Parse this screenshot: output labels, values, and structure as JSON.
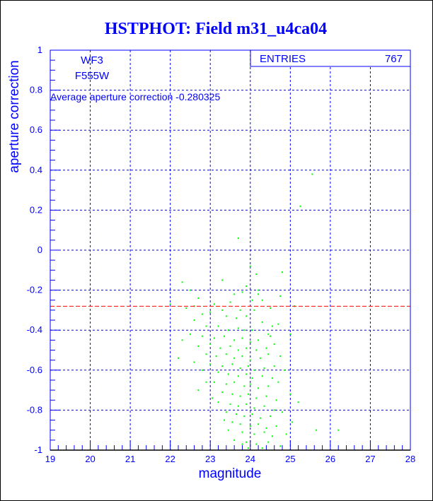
{
  "chart_data": {
    "type": "scatter",
    "title": "HSTPHOT: Field m31_u4ca04",
    "xlabel": "magnitude",
    "ylabel": "aperture correction",
    "xlim": [
      19,
      28
    ],
    "ylim": [
      -1,
      1
    ],
    "xticks": [
      "19",
      "20",
      "21",
      "22",
      "23",
      "24",
      "25",
      "26",
      "27",
      "28"
    ],
    "yticks": [
      "-1",
      "-0.8",
      "-0.6",
      "-0.4",
      "-0.2",
      "0",
      "0.2",
      "0.4",
      "0.6",
      "0.8",
      "1"
    ],
    "grid": true,
    "labels": [
      "WF3",
      "F555W"
    ],
    "annotation": "Average aperture correction -0.280325",
    "average_line": -0.280325,
    "stats": {
      "label": "ENTRIES",
      "value": "767"
    },
    "colors": {
      "axes": "#0000ff",
      "points": "#00ff00",
      "average": "#ff0000",
      "title": "#0000ff"
    },
    "points": [
      [
        25.55,
        0.38
      ],
      [
        25.25,
        0.22
      ],
      [
        23.7,
        0.06
      ],
      [
        24.0,
        -0.08
      ],
      [
        24.15,
        -0.12
      ],
      [
        24.2,
        -0.2
      ],
      [
        24.8,
        -0.11
      ],
      [
        23.3,
        -0.15
      ],
      [
        23.9,
        -0.18
      ],
      [
        24.2,
        -0.22
      ],
      [
        22.5,
        -0.2
      ],
      [
        22.3,
        -0.16
      ],
      [
        22.7,
        -0.24
      ],
      [
        23.6,
        -0.22
      ],
      [
        23.8,
        -0.21
      ],
      [
        24.05,
        -0.25
      ],
      [
        22.0,
        -0.27
      ],
      [
        22.4,
        -0.29
      ],
      [
        22.6,
        -0.28
      ],
      [
        23.1,
        -0.27
      ],
      [
        23.5,
        -0.26
      ],
      [
        23.3,
        -0.3
      ],
      [
        23.75,
        -0.3
      ],
      [
        24.1,
        -0.3
      ],
      [
        24.5,
        -0.29
      ],
      [
        25.1,
        -0.28
      ],
      [
        22.8,
        -0.32
      ],
      [
        23.0,
        -0.31
      ],
      [
        23.4,
        -0.33
      ],
      [
        23.65,
        -0.34
      ],
      [
        23.9,
        -0.33
      ],
      [
        24.3,
        -0.36
      ],
      [
        24.7,
        -0.37
      ],
      [
        22.6,
        -0.35
      ],
      [
        22.9,
        -0.38
      ],
      [
        23.2,
        -0.38
      ],
      [
        23.45,
        -0.4
      ],
      [
        23.7,
        -0.39
      ],
      [
        23.85,
        -0.4
      ],
      [
        24.05,
        -0.4
      ],
      [
        24.55,
        -0.38
      ],
      [
        22.5,
        -0.42
      ],
      [
        22.8,
        -0.43
      ],
      [
        23.1,
        -0.44
      ],
      [
        23.35,
        -0.43
      ],
      [
        23.6,
        -0.45
      ],
      [
        23.8,
        -0.44
      ],
      [
        24.0,
        -0.46
      ],
      [
        24.2,
        -0.45
      ],
      [
        24.5,
        -0.43
      ],
      [
        25.0,
        -0.42
      ],
      [
        22.3,
        -0.45
      ],
      [
        22.7,
        -0.48
      ],
      [
        23.0,
        -0.47
      ],
      [
        23.25,
        -0.49
      ],
      [
        23.5,
        -0.48
      ],
      [
        23.7,
        -0.5
      ],
      [
        23.9,
        -0.49
      ],
      [
        24.15,
        -0.5
      ],
      [
        24.4,
        -0.49
      ],
      [
        24.6,
        -0.47
      ],
      [
        22.9,
        -0.52
      ],
      [
        23.15,
        -0.53
      ],
      [
        23.4,
        -0.52
      ],
      [
        23.6,
        -0.54
      ],
      [
        23.8,
        -0.53
      ],
      [
        24.0,
        -0.55
      ],
      [
        24.25,
        -0.54
      ],
      [
        24.45,
        -0.52
      ],
      [
        24.75,
        -0.53
      ],
      [
        22.2,
        -0.54
      ],
      [
        22.6,
        -0.56
      ],
      [
        23.0,
        -0.57
      ],
      [
        23.3,
        -0.58
      ],
      [
        23.55,
        -0.57
      ],
      [
        23.75,
        -0.59
      ],
      [
        23.95,
        -0.58
      ],
      [
        24.1,
        -0.6
      ],
      [
        24.35,
        -0.59
      ],
      [
        24.6,
        -0.58
      ],
      [
        22.8,
        -0.6
      ],
      [
        23.2,
        -0.61
      ],
      [
        23.45,
        -0.62
      ],
      [
        23.7,
        -0.63
      ],
      [
        23.9,
        -0.62
      ],
      [
        24.05,
        -0.64
      ],
      [
        24.3,
        -0.63
      ],
      [
        24.55,
        -0.64
      ],
      [
        24.85,
        -0.6
      ],
      [
        23.1,
        -0.66
      ],
      [
        23.4,
        -0.67
      ],
      [
        23.6,
        -0.66
      ],
      [
        23.85,
        -0.68
      ],
      [
        24.0,
        -0.67
      ],
      [
        24.2,
        -0.69
      ],
      [
        24.45,
        -0.68
      ],
      [
        24.7,
        -0.66
      ],
      [
        22.7,
        -0.7
      ],
      [
        23.3,
        -0.71
      ],
      [
        23.55,
        -0.72
      ],
      [
        23.75,
        -0.73
      ],
      [
        23.95,
        -0.72
      ],
      [
        24.15,
        -0.74
      ],
      [
        24.4,
        -0.73
      ],
      [
        24.65,
        -0.75
      ],
      [
        25.0,
        -0.72
      ],
      [
        23.2,
        -0.76
      ],
      [
        23.5,
        -0.77
      ],
      [
        23.7,
        -0.78
      ],
      [
        23.9,
        -0.77
      ],
      [
        24.1,
        -0.79
      ],
      [
        24.35,
        -0.78
      ],
      [
        24.6,
        -0.8
      ],
      [
        25.2,
        -0.76
      ],
      [
        23.4,
        -0.81
      ],
      [
        23.65,
        -0.82
      ],
      [
        23.85,
        -0.83
      ],
      [
        24.05,
        -0.82
      ],
      [
        24.25,
        -0.84
      ],
      [
        24.5,
        -0.83
      ],
      [
        24.8,
        -0.81
      ],
      [
        23.55,
        -0.86
      ],
      [
        23.75,
        -0.87
      ],
      [
        24.0,
        -0.88
      ],
      [
        24.2,
        -0.87
      ],
      [
        24.4,
        -0.89
      ],
      [
        24.65,
        -0.88
      ],
      [
        25.05,
        -0.86
      ],
      [
        23.45,
        -0.9
      ],
      [
        23.8,
        -0.91
      ],
      [
        24.1,
        -0.92
      ],
      [
        24.35,
        -0.91
      ],
      [
        24.55,
        -0.93
      ],
      [
        24.9,
        -0.92
      ],
      [
        25.65,
        -0.9
      ],
      [
        26.2,
        -0.9
      ],
      [
        23.6,
        -0.95
      ],
      [
        23.9,
        -0.96
      ],
      [
        24.15,
        -0.97
      ],
      [
        24.45,
        -0.96
      ],
      [
        24.75,
        -0.98
      ],
      [
        23.95,
        -0.99
      ],
      [
        24.3,
        -0.99
      ],
      [
        23.8,
        -0.97
      ],
      [
        23.35,
        -0.85
      ],
      [
        22.9,
        -0.66
      ],
      [
        23.05,
        -0.74
      ],
      [
        24.45,
        -0.42
      ],
      [
        24.3,
        -0.25
      ],
      [
        24.75,
        -0.23
      ]
    ]
  }
}
